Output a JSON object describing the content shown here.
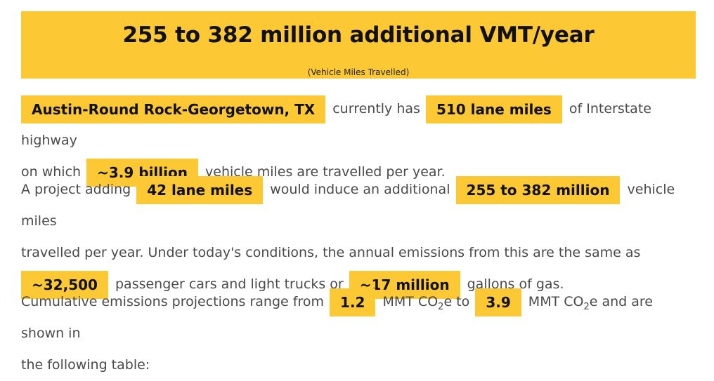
{
  "banner": {
    "title": "255 to 382 million additional VMT/year",
    "subtitle": "(Vehicle Miles Travelled)"
  },
  "para1": {
    "metro": "Austin-Round Rock-Georgetown, TX",
    "t1": "currently has",
    "lane_miles": "510 lane miles",
    "t2": "of Interstate highway",
    "t3": "on which",
    "vmt": "~3.9 billion",
    "t4": "vehicle miles are travelled per year."
  },
  "para2": {
    "t1": "A project adding",
    "added_lane_miles": "42 lane miles",
    "t2": "would induce an additional",
    "induced_vmt": "255 to 382 million",
    "t3": "vehicle miles",
    "t4": "travelled per year. Under today's conditions, the annual emissions from this are the same as",
    "cars": "~32,500",
    "t5": "passenger cars and light trucks or",
    "gallons": "~17 million",
    "t6": "gallons of gas."
  },
  "para3": {
    "t1": "Cumulative emissions projections range from",
    "low": "1.2",
    "unit_a": "MMT CO",
    "sub_a": "2",
    "t2": "e to",
    "high": "3.9",
    "unit_b": "MMT CO",
    "sub_b": "2",
    "t3": "e and are shown in",
    "t4": "the following table:"
  },
  "colors": {
    "highlight": "#fcc834",
    "text": "#4a4a4a",
    "bold_text": "#111111"
  }
}
